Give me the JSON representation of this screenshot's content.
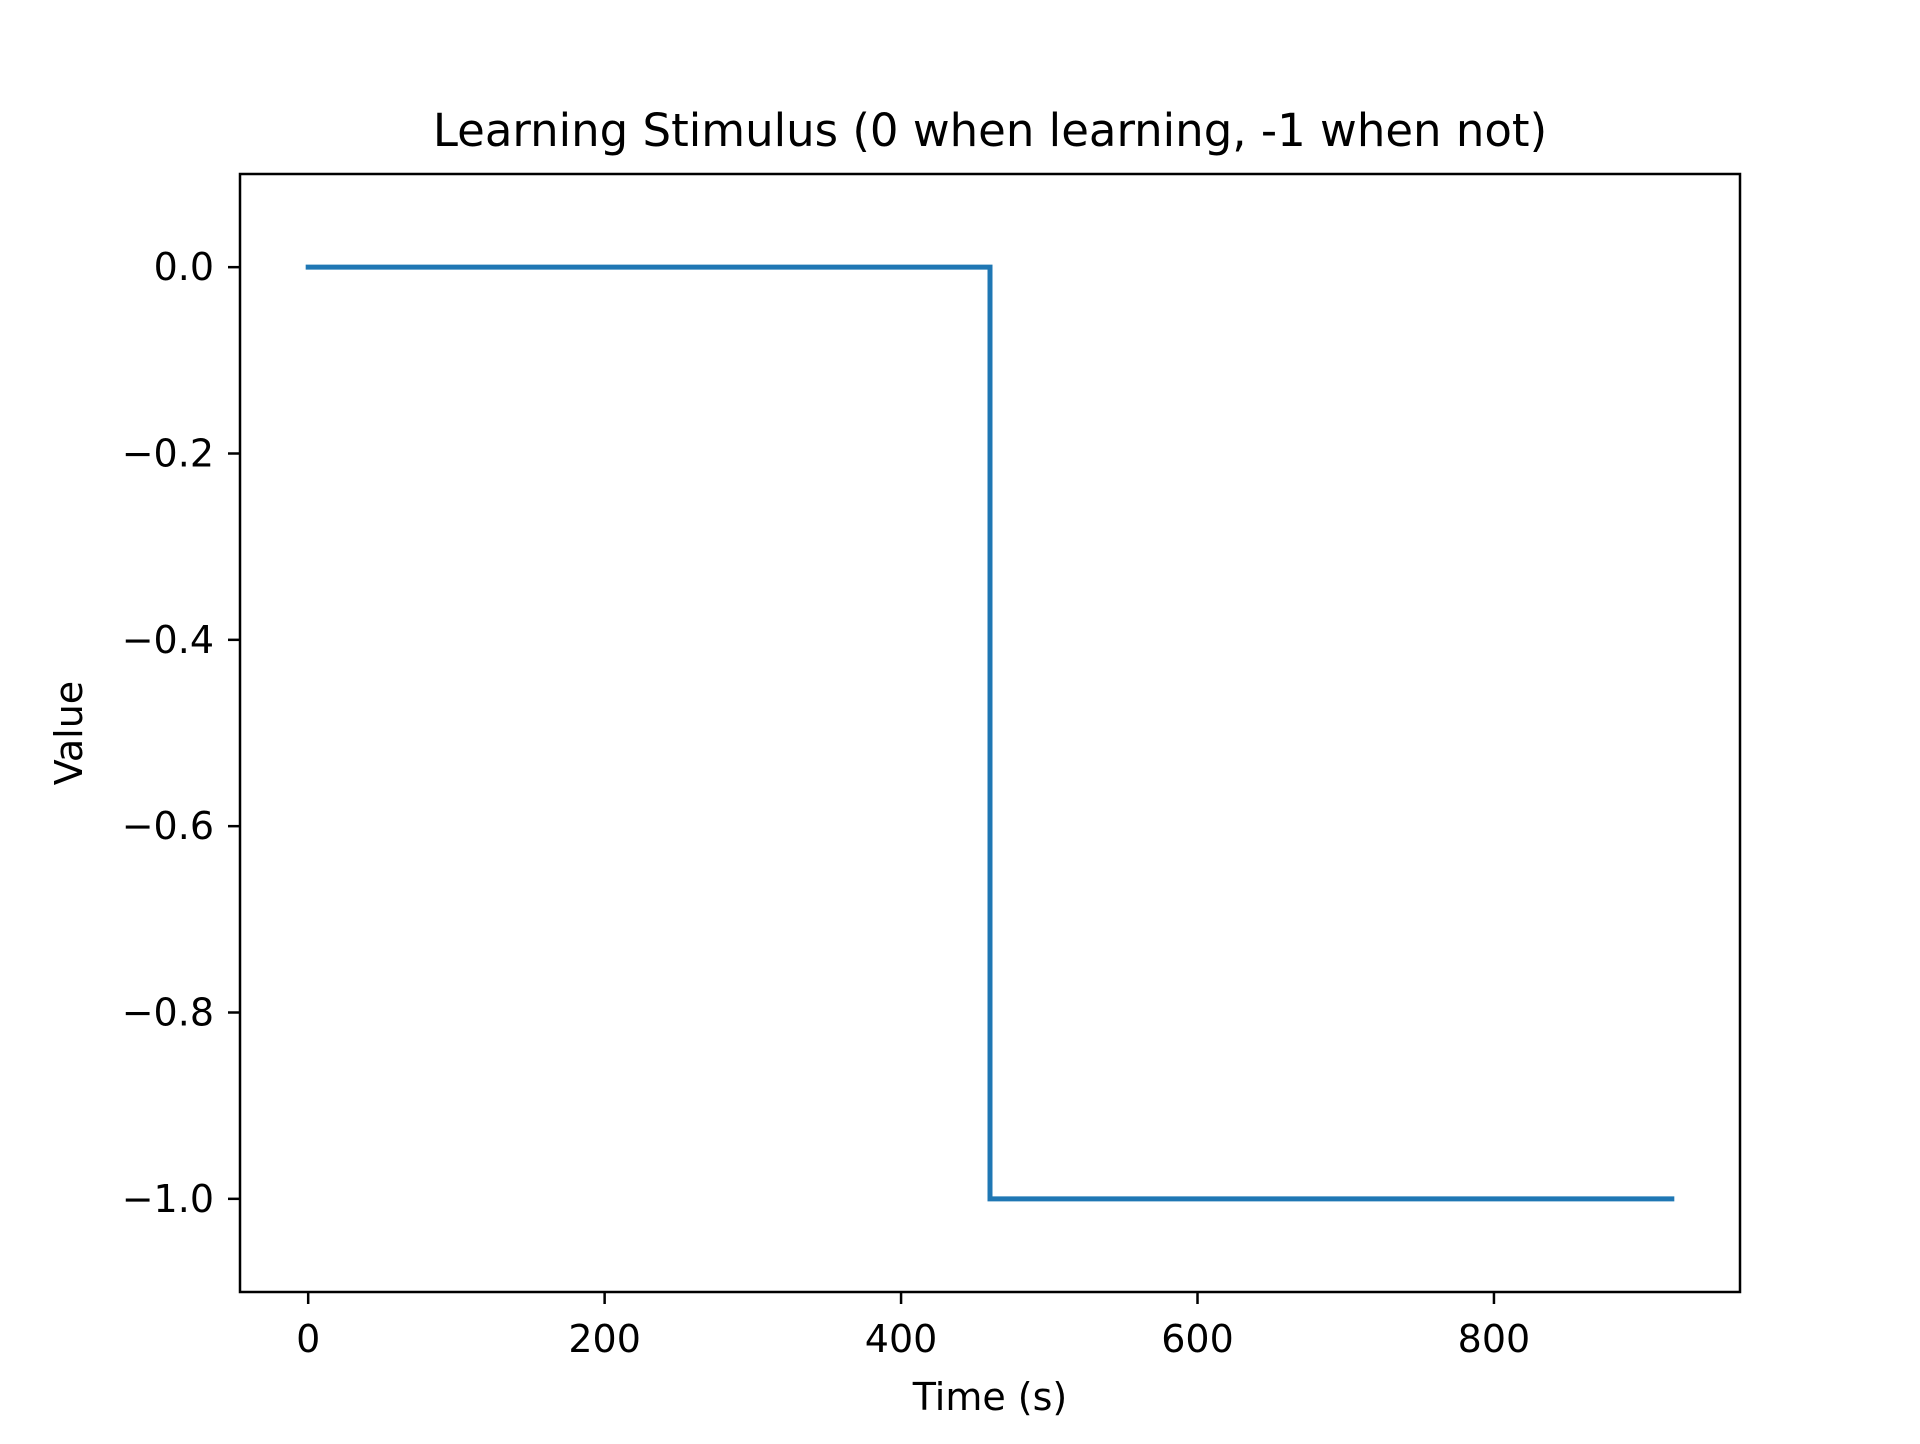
{
  "chart_data": {
    "type": "line",
    "title": "Learning Stimulus (0 when learning, -1 when not)",
    "xlabel": "Time (s)",
    "ylabel": "Value",
    "xlim": [
      -46,
      966
    ],
    "ylim": [
      -1.1,
      0.1
    ],
    "x_ticks": [
      0,
      200,
      400,
      600,
      800
    ],
    "x_tick_labels": [
      "0",
      "200",
      "400",
      "600",
      "800"
    ],
    "y_ticks": [
      0.0,
      -0.2,
      -0.4,
      -0.6,
      -0.8,
      -1.0
    ],
    "y_tick_labels": [
      "0.0",
      "−0.2",
      "−0.4",
      "−0.6",
      "−0.8",
      "−1.0"
    ],
    "grid": false,
    "series": [
      {
        "color": "#1f77b4",
        "x": [
          0,
          460,
          460,
          920
        ],
        "y": [
          0,
          0,
          -1,
          -1
        ]
      }
    ]
  }
}
